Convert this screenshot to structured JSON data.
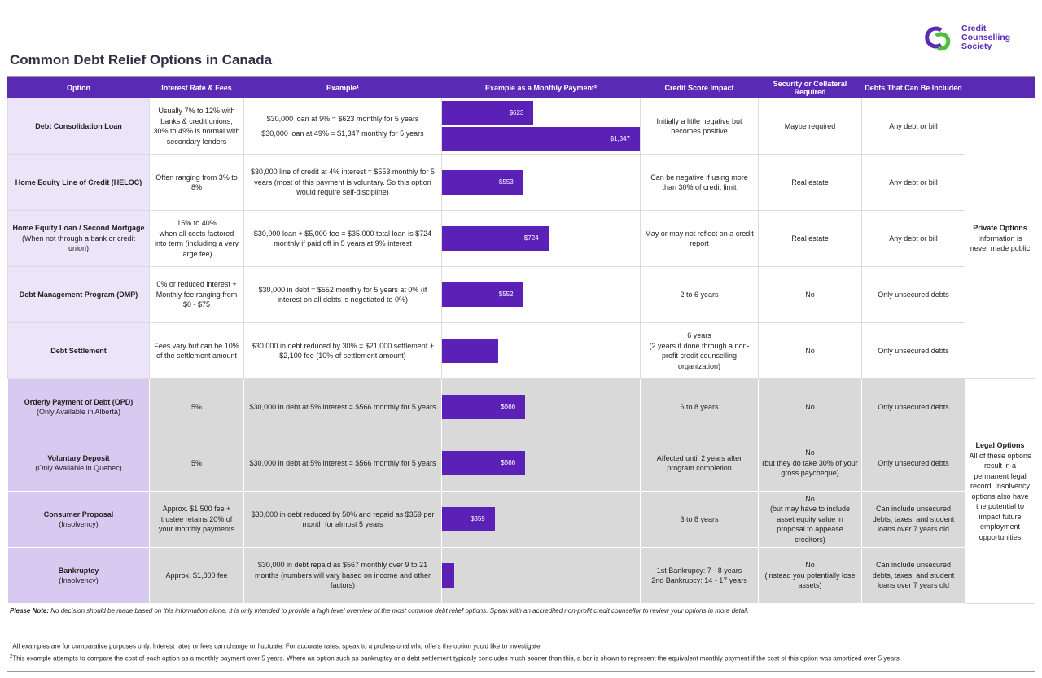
{
  "header": {
    "title": "Common Debt Relief Options in Canada",
    "logo": [
      "Credit",
      "Counselling",
      "Society"
    ]
  },
  "table": {
    "columns": [
      "Option",
      "Interest Rate & Fees",
      "Example¹",
      "Example as a Monthly Payment²",
      "Credit Score Impact",
      "Security or Collateral Required",
      "Debts That Can Be Included"
    ],
    "sections": [
      {
        "title": "Private Options",
        "text": "Information is never made public",
        "rows": [
          {
            "option": "Debt Consolidation Loan",
            "rate": "Usually 7% to 12% with banks & credit unions; 30% to 49% is normal with secondary lenders",
            "example": [
              "$30,000 loan at 9% = $623 monthly for 5 years",
              "$30,000 loan at 49% = $1,347 monthly for 5 years"
            ],
            "payments": {
              "values": [
                623,
                1347
              ],
              "value_labels": [
                "$623",
                "$1,347"
              ]
            },
            "credit": "Initially a little negative but becomes positive",
            "security": "Maybe required",
            "debts": "Any debt or bill"
          },
          {
            "option": "Home Equity Line of Credit (HELOC)",
            "rate": "Often ranging from 3% to 8%",
            "example": [
              "$30,000 line of credit at 4% interest = $553 monthly for 5 years (most of this payment is voluntary. So this option would require self-discipline)"
            ],
            "payments": {
              "values": [
                553
              ],
              "value_labels": [
                "$553"
              ]
            },
            "credit": "Can be negative if using more than 30% of credit limit",
            "security": "Real estate",
            "debts": "Any debt or bill"
          },
          {
            "option": "Home Equity Loan / Second Mortgage",
            "note": "(When not through a bank or credit union)",
            "rate": "15% to 40%\nwhen all costs factored into term (including a very large fee)",
            "example": [
              "$30,000 loan + $5,000 fee = $35,000 total loan is $724 monthly if paid off in 5 years at 9% interest"
            ],
            "payments": {
              "values": [
                724
              ],
              "value_labels": [
                "$724"
              ]
            },
            "credit": "May or may not reflect on a credit report",
            "security": "Real estate",
            "debts": "Any debt or bill"
          },
          {
            "option": "Debt Management Program (DMP)",
            "rate": "0% or reduced interest + Monthly fee ranging from $0 - $75",
            "example": [
              "$30,000 in debt = $552 monthly for 5 years at 0% (if interest on all debts is negotiated to 0%)"
            ],
            "payments": {
              "values": [
                552
              ],
              "value_labels": [
                "$552"
              ]
            },
            "credit": "2 to 6 years",
            "security": "No",
            "debts": "Only unsecured debts"
          },
          {
            "option": "Debt Settlement",
            "rate": "Fees vary but can be 10% of the settlement amount",
            "example": [
              "$30,000 in debt reduced by 30% = $21,000 settlement + $2,100 fee (10% of settlement amount)"
            ],
            "payments": {
              "values": [
                385
              ],
              "value_labels": [
                null
              ]
            },
            "credit": "6 years\n(2 years if done through a non-profit credit counselling organization)",
            "security": "No",
            "debts": "Only unsecured debts"
          }
        ]
      },
      {
        "title": "Legal Options",
        "text": "All of these options result in a permanent legal record. Insolvency options also have the potential to impact future employment opportunities",
        "rows": [
          {
            "option": "Orderly Payment of Debt (OPD)",
            "note": "(Only Available in Alberta)",
            "rate": "5%",
            "example": [
              "$30,000 in debt at 5% interest = $566 monthly for 5 years"
            ],
            "payments": {
              "values": [
                566
              ],
              "value_labels": [
                "$566"
              ]
            },
            "credit": "6 to 8 years",
            "security": "No",
            "debts": "Only unsecured debts"
          },
          {
            "option": "Voluntary Deposit",
            "note": "(Only Available in Quebec)",
            "rate": "5%",
            "example": [
              "$30,000 in debt at 5% interest = $566 monthly for 5 years"
            ],
            "payments": {
              "values": [
                566
              ],
              "value_labels": [
                "$566"
              ]
            },
            "credit": "Affected until 2 years after program completion",
            "security": "No\n(but they do take 30% of your gross paycheque)",
            "debts": "Only unsecured debts"
          },
          {
            "option": "Consumer Proposal",
            "note": "(Insolvency)",
            "rate": "Approx. $1,500 fee + trustee retains 20% of your monthly payments",
            "example": [
              "$30,000 in debt reduced by 50% and repaid as $359 per month for almost 5 years"
            ],
            "payments": {
              "values": [
                359
              ],
              "value_labels": [
                "$359"
              ]
            },
            "credit": "3 to 8 years",
            "security": "No\n(but may have to include asset equity value in proposal to appease creditors)",
            "debts": "Can include unsecured debts, taxes, and student loans over 7 years old"
          },
          {
            "option": "Bankruptcy",
            "note": "(Insolvency)",
            "rate": "Approx. $1,800 fee",
            "example": [
              "$30,000 in debt repaid as $567 monthly over 9 to 21 months (numbers will vary based on income and other factors)"
            ],
            "payments": {
              "values": [
                83
              ],
              "value_labels": [
                null
              ]
            },
            "credit": "1st Bankrupcy: 7 - 8 years\n2nd Bankrupcy: 14 - 17 years",
            "security": "No\n(instead you potentially lose assets)",
            "debts": "Can include unsecured debts, taxes, and student loans over 7 years old"
          }
        ]
      }
    ]
  },
  "footer": {
    "note": {
      "label": "Please Note:",
      "text": "No decision should be made based on this information alone. It is only intended to provide a high level overview of the most common debt relief options. Speak with an accredited non-profit credit counsellor to review your options in more detail."
    },
    "footnotes": [
      {
        "mark": "1",
        "text": "All examples are for comparative purposes only. Interest rates or fees can change or fluctuate. For accurate rates, speak to a professional who offers the option you'd like to investigate."
      },
      {
        "mark": "2",
        "text": "This example attempts to compare the cost of each option as a monthly payment over 5 years. Where an option such as bankruptcy or a debt settlement typically concludes much sooner than this, a bar is shown to represent the equivalent monthly payment if the cost of this option was amortized over 5 years."
      }
    ]
  }
}
